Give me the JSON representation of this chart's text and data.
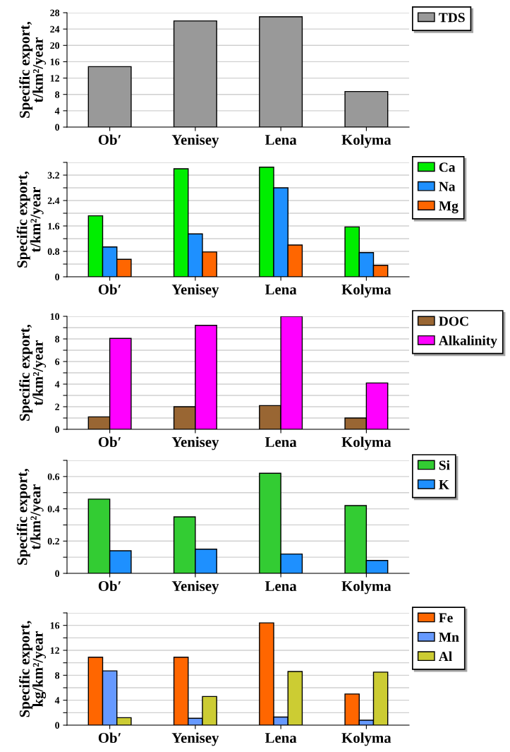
{
  "chart_data": [
    {
      "type": "bar",
      "categories": [
        "Ob′",
        "Yenisey",
        "Lena",
        "Kolyma"
      ],
      "ylabel": "Specific export,\nt/km²/year",
      "ylim": [
        0,
        28
      ],
      "yticks": [
        0,
        4,
        8,
        12,
        16,
        20,
        24,
        28
      ],
      "grid": "y",
      "legend": "top right",
      "series": [
        {
          "name": "TDS",
          "color": "#999999",
          "values": [
            14.8,
            26,
            27,
            8.7
          ]
        }
      ]
    },
    {
      "type": "bar",
      "categories": [
        "Ob′",
        "Yenisey",
        "Lena",
        "Kolyma"
      ],
      "ylabel": "Specific export,\nt/km²/year",
      "ylim": [
        0,
        3.6
      ],
      "yticks": [
        0,
        {
          "value": 0.4,
          "label": null
        },
        0.8,
        {
          "value": 1.2,
          "label": null
        },
        1.6,
        {
          "value": 2.0,
          "label": null
        },
        2.4,
        {
          "value": 2.8,
          "label": null
        },
        3.2,
        {
          "value": 3.6,
          "label": null
        }
      ],
      "grid": "y",
      "legend": "top right",
      "series": [
        {
          "name": "Ca",
          "color": "#00ee00",
          "values": [
            1.92,
            3.4,
            3.45,
            1.57
          ]
        },
        {
          "name": "Na",
          "color": "#1e90ff",
          "values": [
            0.94,
            1.35,
            2.8,
            0.76
          ]
        },
        {
          "name": "Mg",
          "color": "#ff6600",
          "values": [
            0.55,
            0.78,
            1.0,
            0.36
          ]
        }
      ]
    },
    {
      "type": "bar",
      "categories": [
        "Ob′",
        "Yenisey",
        "Lena",
        "Kolyma"
      ],
      "ylabel": "Specific export,\nt/km²/year",
      "ylim": [
        0,
        10
      ],
      "yticks": [
        0,
        {
          "value": 1,
          "label": null
        },
        2,
        {
          "value": 3,
          "label": null
        },
        4,
        {
          "value": 5,
          "label": null
        },
        6,
        {
          "value": 7,
          "label": null
        },
        8,
        {
          "value": 9,
          "label": null
        },
        10
      ],
      "grid": "y",
      "legend": "top right",
      "series": [
        {
          "name": "DOC",
          "color": "#996633",
          "values": [
            1.1,
            2.0,
            2.1,
            1.0
          ]
        },
        {
          "name": "Alkalinity",
          "color": "#ff00ff",
          "values": [
            8.05,
            9.2,
            10.0,
            4.1
          ]
        }
      ]
    },
    {
      "type": "bar",
      "categories": [
        "Ob′",
        "Yenisey",
        "Lena",
        "Kolyma"
      ],
      "ylabel": "Specific export,\nt/km²/year",
      "ylim": [
        0,
        0.7
      ],
      "yticks": [
        0,
        {
          "value": 0.1,
          "label": null
        },
        0.2,
        {
          "value": 0.3,
          "label": null
        },
        0.4,
        {
          "value": 0.5,
          "label": null
        },
        0.6,
        {
          "value": 0.7,
          "label": null
        }
      ],
      "grid": "y",
      "legend": "top right",
      "series": [
        {
          "name": "Si",
          "color": "#33cc33",
          "values": [
            0.46,
            0.35,
            0.62,
            0.42
          ]
        },
        {
          "name": "K",
          "color": "#1e90ff",
          "values": [
            0.14,
            0.15,
            0.12,
            0.08
          ]
        }
      ]
    },
    {
      "type": "bar",
      "categories": [
        "Ob′",
        "Yenisey",
        "Lena",
        "Kolyma"
      ],
      "ylabel": "Specific export,\nkg/km²/year",
      "ylim": [
        0,
        18
      ],
      "yticks": [
        0,
        {
          "value": 2,
          "label": null
        },
        4,
        {
          "value": 6,
          "label": null
        },
        8,
        {
          "value": 10,
          "label": null
        },
        12,
        {
          "value": 14,
          "label": null
        },
        16,
        {
          "value": 18,
          "label": null
        }
      ],
      "grid": "y",
      "legend": "top right",
      "series": [
        {
          "name": "Fe",
          "color": "#ff6600",
          "values": [
            10.9,
            10.9,
            16.4,
            5.0
          ]
        },
        {
          "name": "Mn",
          "color": "#6699ff",
          "values": [
            8.7,
            1.1,
            1.3,
            0.8
          ]
        },
        {
          "name": "Al",
          "color": "#cccc33",
          "values": [
            1.2,
            4.6,
            8.6,
            8.5
          ]
        }
      ]
    }
  ]
}
